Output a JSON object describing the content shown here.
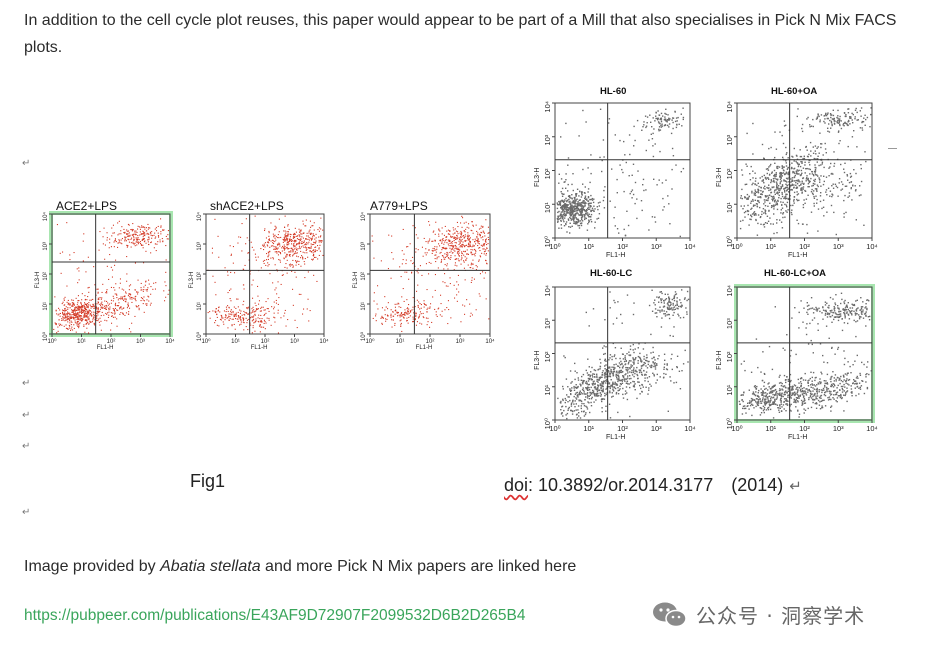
{
  "text": {
    "intro": "In addition to the cell cycle plot reuses, this paper would appear to be part of a Mill that also specialises in Pick N Mix FACS plots.",
    "credit_prefix": "Image provided by ",
    "credit_name": "Abatia stellata",
    "credit_suffix": " and more Pick N Mix papers are linked here",
    "link": "https://pubpeer.com/publications/E43AF9D72907F2099532D6B2D265B4",
    "fig1_caption": "Fig1",
    "doi_word": "doi",
    "doi_rest": ": 10.3892/or.2014.3177　(2014)",
    "return_mark": "↵",
    "para_marker": "↵",
    "watermark": "公众号 · 洞察学术",
    "watermark_icon": "wechat-icon"
  },
  "left_plots": [
    {
      "title": "ACE2+LPS",
      "highlight": true
    },
    {
      "title": "shACE2+LPS",
      "highlight": false
    },
    {
      "title": "A779+LPS",
      "highlight": false
    }
  ],
  "right_plots": [
    {
      "title": "HL-60",
      "highlight": false
    },
    {
      "title": "HL-60+OA",
      "highlight": false
    },
    {
      "title": "HL-60-LC",
      "highlight": false
    },
    {
      "title": "HL-60-LC+OA",
      "highlight": true
    }
  ],
  "axes": {
    "x_label": "FL1-H",
    "y_label": "FL3-H",
    "ticks": [
      "10⁰",
      "10¹",
      "10²",
      "10³",
      "10⁴"
    ]
  },
  "colors": {
    "red_dots": "#d43a26",
    "gray_dots": "#6a6a6a",
    "highlight_box": "#a8e6b0",
    "link": "#3aa55b"
  }
}
